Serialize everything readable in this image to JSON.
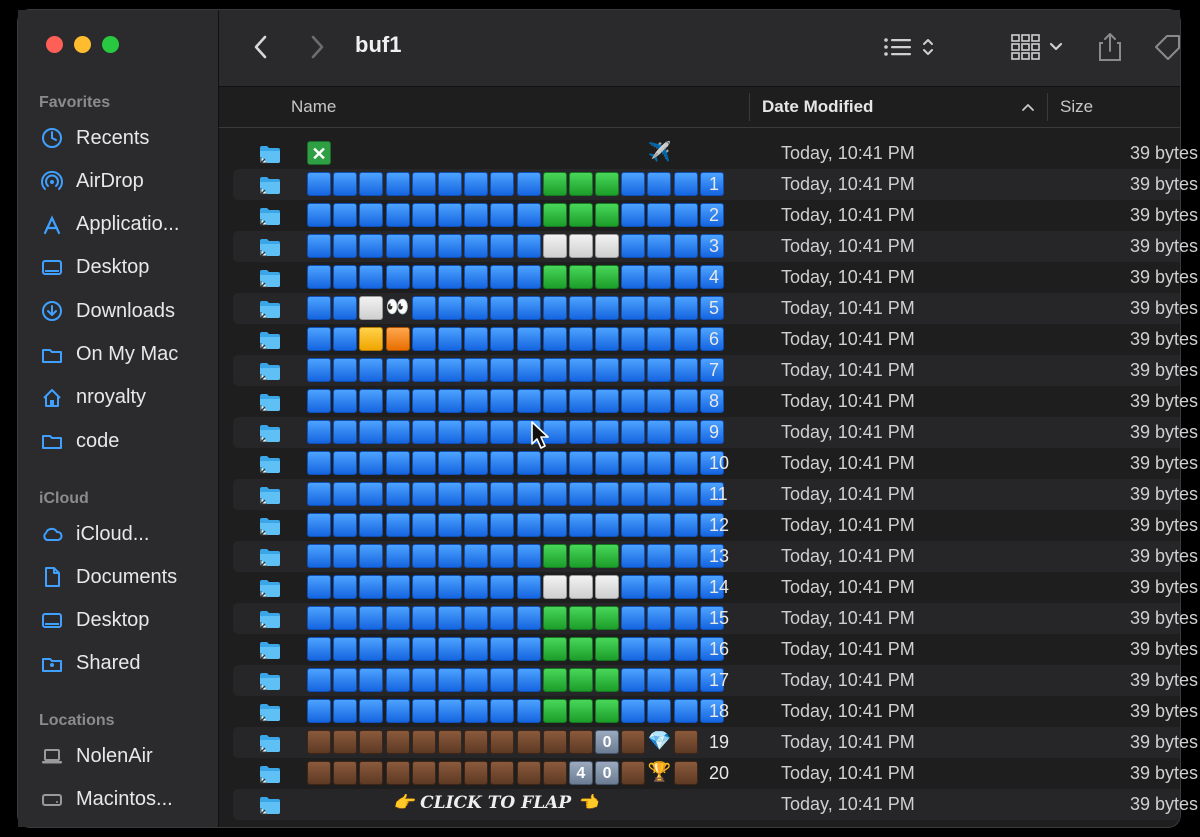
{
  "window": {
    "title": "buf1"
  },
  "sidebar": {
    "favorites_label": "Favorites",
    "favorites": [
      {
        "label": "Recents",
        "icon": "clock-icon"
      },
      {
        "label": "AirDrop",
        "icon": "airdrop-icon"
      },
      {
        "label": "Applicatio...",
        "icon": "applications-icon"
      },
      {
        "label": "Desktop",
        "icon": "desktop-icon"
      },
      {
        "label": "Downloads",
        "icon": "download-icon"
      },
      {
        "label": "On My Mac",
        "icon": "folder-icon"
      },
      {
        "label": "nroyalty",
        "icon": "home-icon"
      },
      {
        "label": "code",
        "icon": "folder-icon"
      }
    ],
    "icloud_label": "iCloud",
    "icloud": [
      {
        "label": "iCloud...",
        "icon": "cloud-icon"
      },
      {
        "label": "Documents",
        "icon": "document-icon"
      },
      {
        "label": "Desktop",
        "icon": "desktop-icon"
      },
      {
        "label": "Shared",
        "icon": "shared-folder-icon"
      }
    ],
    "locations_label": "Locations",
    "locations": [
      {
        "label": "NolenAir",
        "icon": "laptop-icon"
      },
      {
        "label": "Macintos...",
        "icon": "disk-icon"
      }
    ]
  },
  "columns": {
    "name": "Name",
    "date_modified": "Date Modified",
    "size": "Size"
  },
  "rows": [
    {
      "cells": "x............p..",
      "num": "",
      "date": "Today, 10:41 PM",
      "size": "39 bytes"
    },
    {
      "cells": "bbbbbbbbbgggbbbb",
      "num": "1",
      "date": "Today, 10:41 PM",
      "size": "39 bytes"
    },
    {
      "cells": "bbbbbbbbbgggbbbb",
      "num": "2",
      "date": "Today, 10:41 PM",
      "size": "39 bytes"
    },
    {
      "cells": "bbbbbbbbbwwwbbbb",
      "num": "3",
      "date": "Today, 10:41 PM",
      "size": "39 bytes"
    },
    {
      "cells": "bbbbbbbbbgggbbbb",
      "num": "4",
      "date": "Today, 10:41 PM",
      "size": "39 bytes"
    },
    {
      "cells": "bbwEbbbbbbbbbbbb",
      "num": "5",
      "date": "Today, 10:41 PM",
      "size": "39 bytes"
    },
    {
      "cells": "bbyobbbbbbbbbbbb",
      "num": "6",
      "date": "Today, 10:41 PM",
      "size": "39 bytes"
    },
    {
      "cells": "bbbbbbbbbbbbbbbb",
      "num": "7",
      "date": "Today, 10:41 PM",
      "size": "39 bytes"
    },
    {
      "cells": "bbbbbbbbbbbbbbbb",
      "num": "8",
      "date": "Today, 10:41 PM",
      "size": "39 bytes"
    },
    {
      "cells": "bbbbbbbbbbbbbbbb",
      "num": "9",
      "date": "Today, 10:41 PM",
      "size": "39 bytes"
    },
    {
      "cells": "bbbbbbbbbbbbbbbb",
      "num": "10",
      "date": "Today, 10:41 PM",
      "size": "39 bytes"
    },
    {
      "cells": "bbbbbbbbbbbbbbbb",
      "num": "11",
      "date": "Today, 10:41 PM",
      "size": "39 bytes"
    },
    {
      "cells": "bbbbbbbbbbbbbbbb",
      "num": "12",
      "date": "Today, 10:41 PM",
      "size": "39 bytes"
    },
    {
      "cells": "bbbbbbbbbgggbbbb",
      "num": "13",
      "date": "Today, 10:41 PM",
      "size": "39 bytes"
    },
    {
      "cells": "bbbbbbbbbwwwbbbb",
      "num": "14",
      "date": "Today, 10:41 PM",
      "size": "39 bytes"
    },
    {
      "cells": "bbbbbbbbbgggbbbb",
      "num": "15",
      "date": "Today, 10:41 PM",
      "size": "39 bytes"
    },
    {
      "cells": "bbbbbbbbbgggbbbb",
      "num": "16",
      "date": "Today, 10:41 PM",
      "size": "39 bytes"
    },
    {
      "cells": "bbbbbbbbbgggbbbb",
      "num": "17",
      "date": "Today, 10:41 PM",
      "size": "39 bytes"
    },
    {
      "cells": "bbbbbbbbbgggbbbb",
      "num": "18",
      "date": "Today, 10:41 PM",
      "size": "39 bytes"
    },
    {
      "cells": "rrrrrrrrrrrZrDr",
      "num": "19",
      "date": "Today, 10:41 PM",
      "size": "39 bytes"
    },
    {
      "cells": "rrrrrrrrrrFZrTr",
      "num": "20",
      "date": "Today, 10:41 PM",
      "size": "39 bytes"
    },
    {
      "cells": "",
      "num": "",
      "flap": "👉 CLICK TO FLAP 👈",
      "date": "Today, 10:41 PM",
      "size": "39 bytes"
    }
  ],
  "glyphs": {
    "x": "✕",
    "p": "✈️",
    "E": "👀",
    "Z": "0",
    "F": "4",
    "D": "💎",
    "T": "🏆"
  },
  "colors": {
    "sky": "#1e6ff0",
    "pipe": "#28b33b",
    "cloud": "#e6e6e6",
    "ground": "#6e4630",
    "bird_yellow": "#ffd24a",
    "bird_orange": "#f08a1c"
  }
}
